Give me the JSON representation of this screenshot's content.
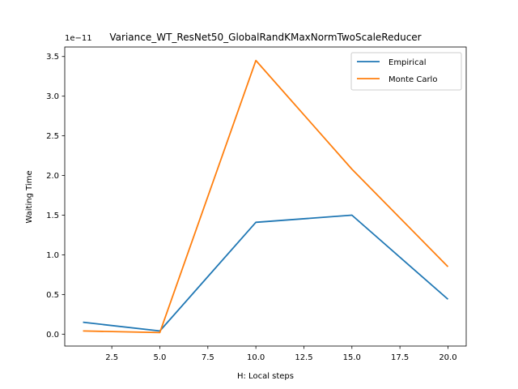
{
  "chart_data": {
    "type": "line",
    "title": "Variance_WT_ResNet50_GlobalRandKMaxNormTwoScaleReducer",
    "xlabel": "H: Local steps",
    "ylabel": "Waiting Time",
    "y_offset_label": "1e−11",
    "x": [
      1,
      5,
      10,
      15,
      20
    ],
    "xlim": [
      0.05,
      20.95
    ],
    "ylim": [
      -0.15,
      3.62
    ],
    "x_ticks": [
      "2.5",
      "5.0",
      "7.5",
      "10.0",
      "12.5",
      "15.0",
      "17.5",
      "20.0"
    ],
    "y_ticks": [
      "0.0",
      "0.5",
      "1.0",
      "1.5",
      "2.0",
      "2.5",
      "3.0",
      "3.5"
    ],
    "legend_position": "upper right",
    "grid": false,
    "series": [
      {
        "name": "Empirical",
        "color": "#1f77b4",
        "values": [
          0.15,
          0.04,
          1.41,
          1.5,
          0.44
        ]
      },
      {
        "name": "Monte Carlo",
        "color": "#ff7f0e",
        "values": [
          0.04,
          0.02,
          3.45,
          2.08,
          0.85
        ]
      }
    ]
  }
}
